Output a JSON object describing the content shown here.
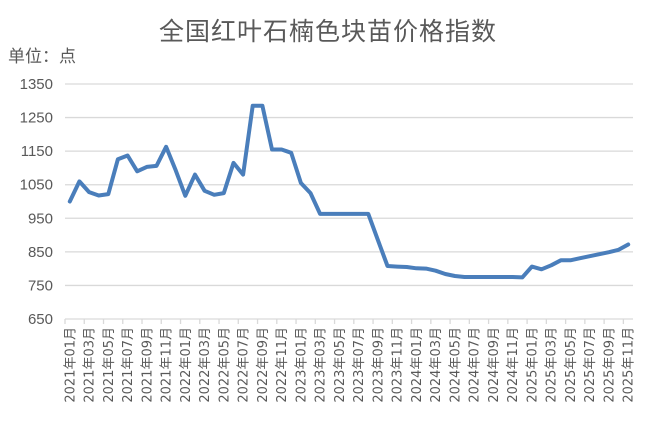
{
  "chart_data": {
    "type": "line",
    "title": "全国红叶石楠色块苗价格指数",
    "unit_label": "单位：点",
    "xlabel": "",
    "ylabel": "单位：点",
    "ylim": [
      650,
      1350
    ],
    "yticks": [
      650,
      750,
      850,
      950,
      1050,
      1150,
      1250,
      1350
    ],
    "grid": true,
    "legend": null,
    "line_color": "#4a7ebb",
    "x": [
      "2021年01月",
      "2021年02月",
      "2021年03月",
      "2021年04月",
      "2021年05月",
      "2021年06月",
      "2021年07月",
      "2021年08月",
      "2021年09月",
      "2021年10月",
      "2021年11月",
      "2021年12月",
      "2022年01月",
      "2022年02月",
      "2022年03月",
      "2022年04月",
      "2022年05月",
      "2022年06月",
      "2022年07月",
      "2022年08月",
      "2022年09月",
      "2022年10月",
      "2022年11月",
      "2022年12月",
      "2023年01月",
      "2023年02月",
      "2023年03月",
      "2023年04月",
      "2023年05月",
      "2023年06月",
      "2023年07月",
      "2023年08月",
      "2023年09月",
      "2023年10月",
      "2023年11月",
      "2023年12月",
      "2024年01月",
      "2024年02月",
      "2024年03月",
      "2024年04月",
      "2024年05月",
      "2024年06月",
      "2024年07月",
      "2024年08月",
      "2024年09月",
      "2024年10月",
      "2024年11月",
      "2024年12月",
      "2025年01月",
      "2025年02月",
      "2025年03月",
      "2025年04月",
      "2025年05月",
      "2025年06月",
      "2025年07月",
      "2025年08月",
      "2025年09月",
      "2025年10月",
      "2025年11月"
    ],
    "xtick_labels": [
      "2021年01月",
      "2021年03月",
      "2021年05月",
      "2021年07月",
      "2021年09月",
      "2021年11月",
      "2022年01月",
      "2022年03月",
      "2022年05月",
      "2022年07月",
      "2022年09月",
      "2022年11月",
      "2023年01月",
      "2023年03月",
      "2023年05月",
      "2023年07月",
      "2023年09月",
      "2023年11月",
      "2024年01月",
      "2024年03月",
      "2024年05月",
      "2024年07月",
      "2024年09月",
      "2024年11月",
      "2025年01月",
      "2025年03月",
      "2025年05月",
      "2025年07月",
      "2025年09月",
      "2025年11月"
    ],
    "series": [
      {
        "name": "全国红叶石楠色块苗价格指数",
        "values": [
          1000,
          1060,
          1028,
          1018,
          1022,
          1126,
          1137,
          1090,
          1103,
          1106,
          1163,
          1093,
          1017,
          1080,
          1032,
          1020,
          1025,
          1115,
          1080,
          1285,
          1285,
          1155,
          1155,
          1145,
          1055,
          1025,
          963,
          963,
          963,
          963,
          963,
          963,
          885,
          808,
          806,
          805,
          801,
          800,
          794,
          784,
          778,
          775,
          775,
          775,
          775,
          775,
          775,
          774,
          806,
          798,
          810,
          825,
          825,
          831,
          837,
          843,
          849,
          856,
          872
        ]
      }
    ]
  }
}
